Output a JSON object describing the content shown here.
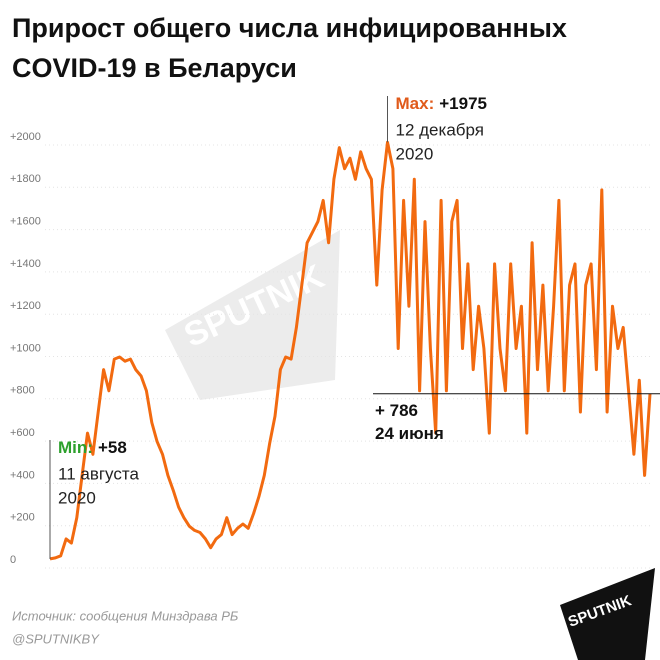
{
  "chart_data": {
    "type": "line",
    "title": [
      "Прирост общего числа инфицированных",
      "COVID-19 в Беларуси"
    ],
    "values": [
      5,
      10,
      20,
      100,
      80,
      200,
      400,
      600,
      500,
      700,
      900,
      800,
      950,
      960,
      940,
      950,
      900,
      870,
      800,
      650,
      560,
      500,
      400,
      330,
      250,
      200,
      160,
      140,
      130,
      100,
      58,
      100,
      120,
      200,
      120,
      150,
      170,
      150,
      220,
      300,
      400,
      550,
      680,
      900,
      960,
      950,
      1100,
      1300,
      1500,
      1550,
      1600,
      1700,
      1500,
      1800,
      1950,
      1850,
      1900,
      1800,
      1930,
      1850,
      1800,
      1300,
      1750,
      1975,
      1850,
      1000,
      1700,
      1200,
      1800,
      800,
      1600,
      1000,
      600,
      1700,
      800,
      1600,
      1700,
      1000,
      1400,
      900,
      1200,
      1000,
      600,
      1400,
      1000,
      800,
      1400,
      1000,
      1200,
      600,
      1500,
      900,
      1300,
      800,
      1200,
      1700,
      800,
      1300,
      1400,
      700,
      1300,
      1400,
      900,
      1750,
      700,
      1200,
      1000,
      1100,
      800,
      500,
      850,
      400,
      786
    ],
    "color": "#f26a10",
    "ylim": [
      0,
      2000
    ],
    "yticks": [
      0,
      {
        "value": 200,
        "label": "+200"
      },
      {
        "value": 400,
        "label": "+400"
      },
      {
        "value": 600,
        "label": "+600"
      },
      {
        "value": 800,
        "label": "+800"
      },
      {
        "value": 1000,
        "label": "+1000"
      },
      {
        "value": 1200,
        "label": "+1200"
      },
      {
        "value": 1400,
        "label": "+1400"
      },
      {
        "value": 1600,
        "label": "+1600"
      },
      {
        "value": 1800,
        "label": "+1800"
      },
      {
        "value": 2000,
        "label": "+2000"
      }
    ],
    "grid": true,
    "min_annotation": {
      "label": "Min:",
      "value_text": "+58",
      "date": [
        "11 августа",
        "2020"
      ],
      "color": "#2ca02c"
    },
    "max_annotation": {
      "label": "Max:",
      "value_text": "+1975",
      "date": [
        "12 декабря",
        "2020"
      ],
      "color": "#e05a1a"
    },
    "reference": {
      "value": 786,
      "label": "+ 786",
      "date": "24 июня"
    },
    "source": "Источник: сообщения Минздрава РБ",
    "credit": "@SPUTNIKBY",
    "logo": "SPUTNIK"
  }
}
